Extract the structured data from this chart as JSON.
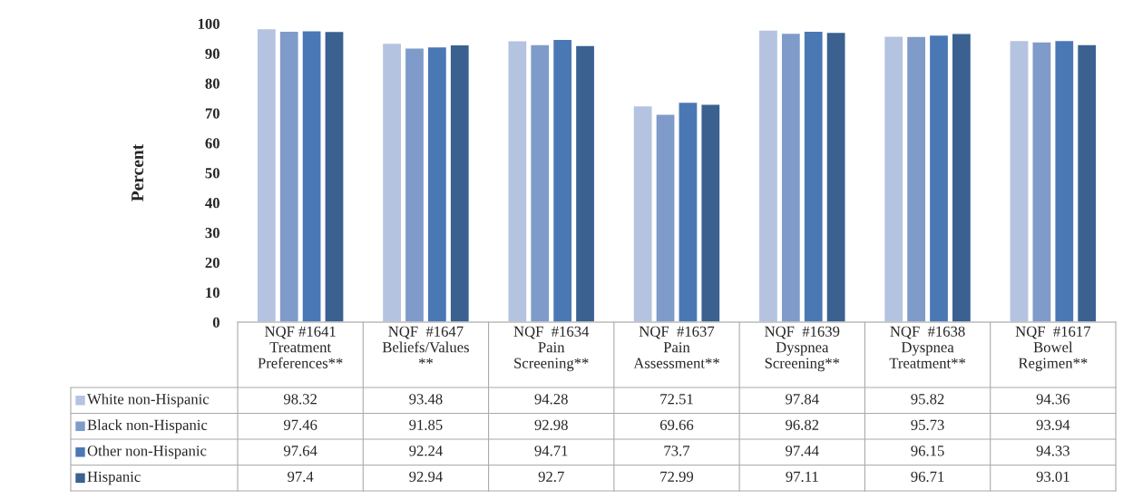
{
  "chart_data": {
    "type": "bar",
    "ylabel": "Percent",
    "categories": [
      "NQF #1641\nTreatment\nPreferences**",
      "NQF  #1647\nBeliefs/Values\n**",
      "NQF  #1634\nPain\nScreening**",
      "NQF  #1637\nPain\nAssessment**",
      "NQF  #1639\nDyspnea\nScreening**",
      "NQF  #1638\nDyspnea\nTreatment**",
      "NQF  #1617\nBowel\nRegimen**"
    ],
    "series": [
      {
        "name": "White non-Hispanic",
        "color": "#b4c3df",
        "values": [
          98.32,
          93.48,
          94.28,
          72.51,
          97.84,
          95.82,
          94.36
        ]
      },
      {
        "name": "Black non-Hispanic",
        "color": "#7f9bc9",
        "values": [
          97.46,
          91.85,
          92.98,
          69.66,
          96.82,
          95.73,
          93.94
        ]
      },
      {
        "name": "Other non-Hispanic",
        "color": "#4a78b4",
        "values": [
          97.64,
          92.24,
          94.71,
          73.7,
          97.44,
          96.15,
          94.33
        ]
      },
      {
        "name": "Hispanic",
        "color": "#3a6190",
        "values": [
          97.4,
          92.94,
          92.7,
          72.99,
          97.11,
          96.71,
          93.01
        ]
      }
    ],
    "ylim": [
      0,
      100
    ],
    "yticks": [
      0,
      10,
      20,
      30,
      40,
      50,
      60,
      70,
      80,
      90,
      100
    ],
    "data_labels": true,
    "legend": "bottom",
    "grid": false
  }
}
